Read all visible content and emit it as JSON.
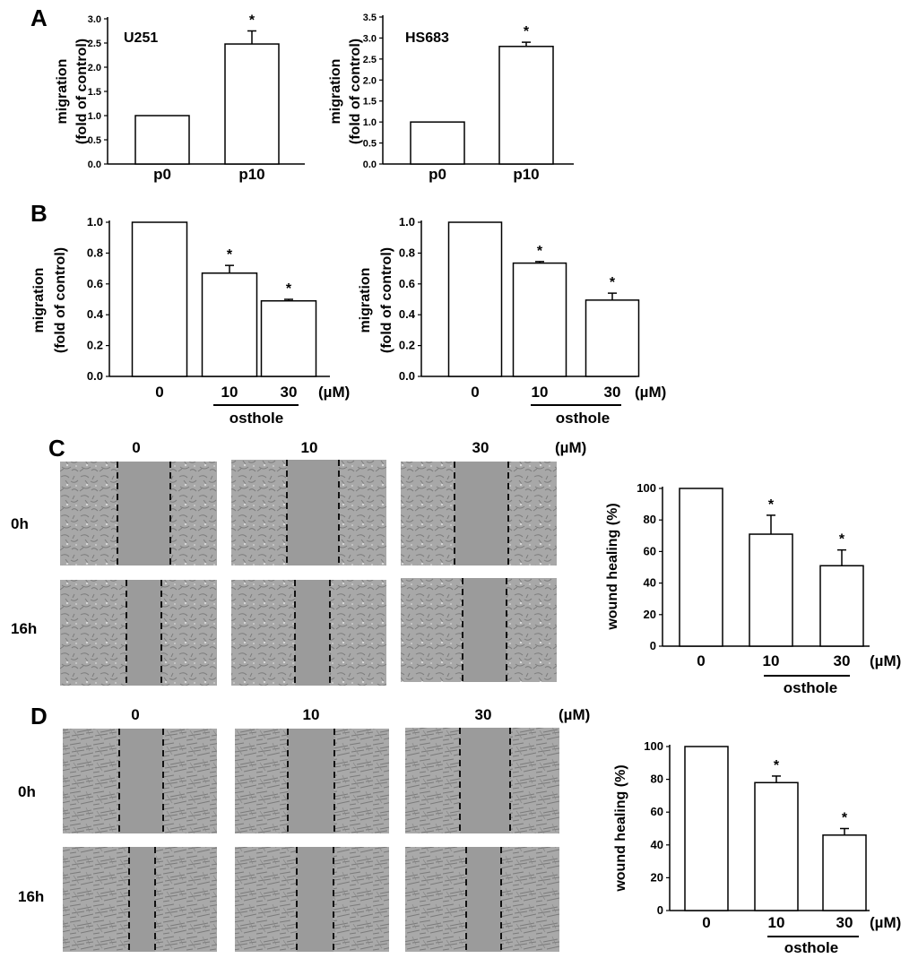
{
  "colors": {
    "bar_fill": "#ffffff",
    "stroke": "#000000",
    "micrograph_bg": "#a6a6a6",
    "gap_fill": "#9a9a9a",
    "texture": "#7d7d7d",
    "dashed_line": "#111111"
  },
  "panels": {
    "A": "A",
    "B": "B",
    "C": "C",
    "D": "D"
  },
  "common": {
    "migration_label_1": "migration",
    "migration_label_2": "(fold of control)",
    "wound_label": "wound healing (%)",
    "unit": "(µM)",
    "osthole": "osthole",
    "sig_marker": "*"
  },
  "micrographs": {
    "C": {
      "columns": [
        "0",
        "10",
        "30"
      ],
      "unit": "(µM)",
      "rows": [
        "0h",
        "16h"
      ]
    },
    "D": {
      "columns": [
        "0",
        "10",
        "30"
      ],
      "unit": "(µM)",
      "rows": [
        "0h",
        "16h"
      ]
    }
  },
  "chart_data": [
    {
      "id": "A-left",
      "type": "bar",
      "title": "U251",
      "categories": [
        "p0",
        "p10"
      ],
      "values": [
        1.0,
        2.48
      ],
      "errors": [
        0,
        0.27
      ],
      "significance": [
        "",
        "*"
      ],
      "ylabel": "migration (fold of control)",
      "ylim": [
        0,
        3.0
      ],
      "yticks": [
        "0.0",
        "0.5",
        "1.0",
        "1.5",
        "2.0",
        "2.5",
        "3.0"
      ]
    },
    {
      "id": "A-right",
      "type": "bar",
      "title": "HS683",
      "categories": [
        "p0",
        "p10"
      ],
      "values": [
        1.0,
        2.8
      ],
      "errors": [
        0,
        0.1
      ],
      "significance": [
        "",
        "*"
      ],
      "ylabel": "migration (fold of control)",
      "ylim": [
        0,
        3.5
      ],
      "yticks": [
        "0.0",
        "0.5",
        "1.0",
        "1.5",
        "2.0",
        "2.5",
        "3.0",
        "3.5"
      ]
    },
    {
      "id": "B-left",
      "type": "bar",
      "categories": [
        "0",
        "10",
        "30"
      ],
      "values": [
        1.0,
        0.67,
        0.49
      ],
      "errors": [
        0,
        0.05,
        0.01
      ],
      "significance": [
        "",
        "*",
        "*"
      ],
      "ylabel": "migration (fold of control)",
      "xlabel": "osthole (µM)",
      "ylim": [
        0,
        1.0
      ],
      "yticks": [
        "0.0",
        "0.2",
        "0.4",
        "0.6",
        "0.8",
        "1.0"
      ]
    },
    {
      "id": "B-right",
      "type": "bar",
      "categories": [
        "0",
        "10",
        "30"
      ],
      "values": [
        1.0,
        0.735,
        0.495
      ],
      "errors": [
        0,
        0.01,
        0.045
      ],
      "significance": [
        "",
        "*",
        "*"
      ],
      "ylabel": "migration (fold of control)",
      "xlabel": "osthole (µM)",
      "ylim": [
        0,
        1.0
      ],
      "yticks": [
        "0.0",
        "0.2",
        "0.4",
        "0.6",
        "0.8",
        "1.0"
      ]
    },
    {
      "id": "C-chart",
      "type": "bar",
      "categories": [
        "0",
        "10",
        "30"
      ],
      "values": [
        100,
        71,
        51
      ],
      "errors": [
        0,
        12,
        10
      ],
      "significance": [
        "",
        "*",
        "*"
      ],
      "ylabel": "wound healing (%)",
      "xlabel": "osthole (µM)",
      "ylim": [
        0,
        100
      ],
      "yticks": [
        "0",
        "20",
        "40",
        "60",
        "80",
        "100"
      ]
    },
    {
      "id": "D-chart",
      "type": "bar",
      "categories": [
        "0",
        "10",
        "30"
      ],
      "values": [
        100,
        78,
        46
      ],
      "errors": [
        0,
        4,
        4
      ],
      "significance": [
        "",
        "*",
        "*"
      ],
      "ylabel": "wound healing (%)",
      "xlabel": "osthole (µM)",
      "ylim": [
        0,
        100
      ],
      "yticks": [
        "0",
        "20",
        "40",
        "60",
        "80",
        "100"
      ]
    }
  ]
}
